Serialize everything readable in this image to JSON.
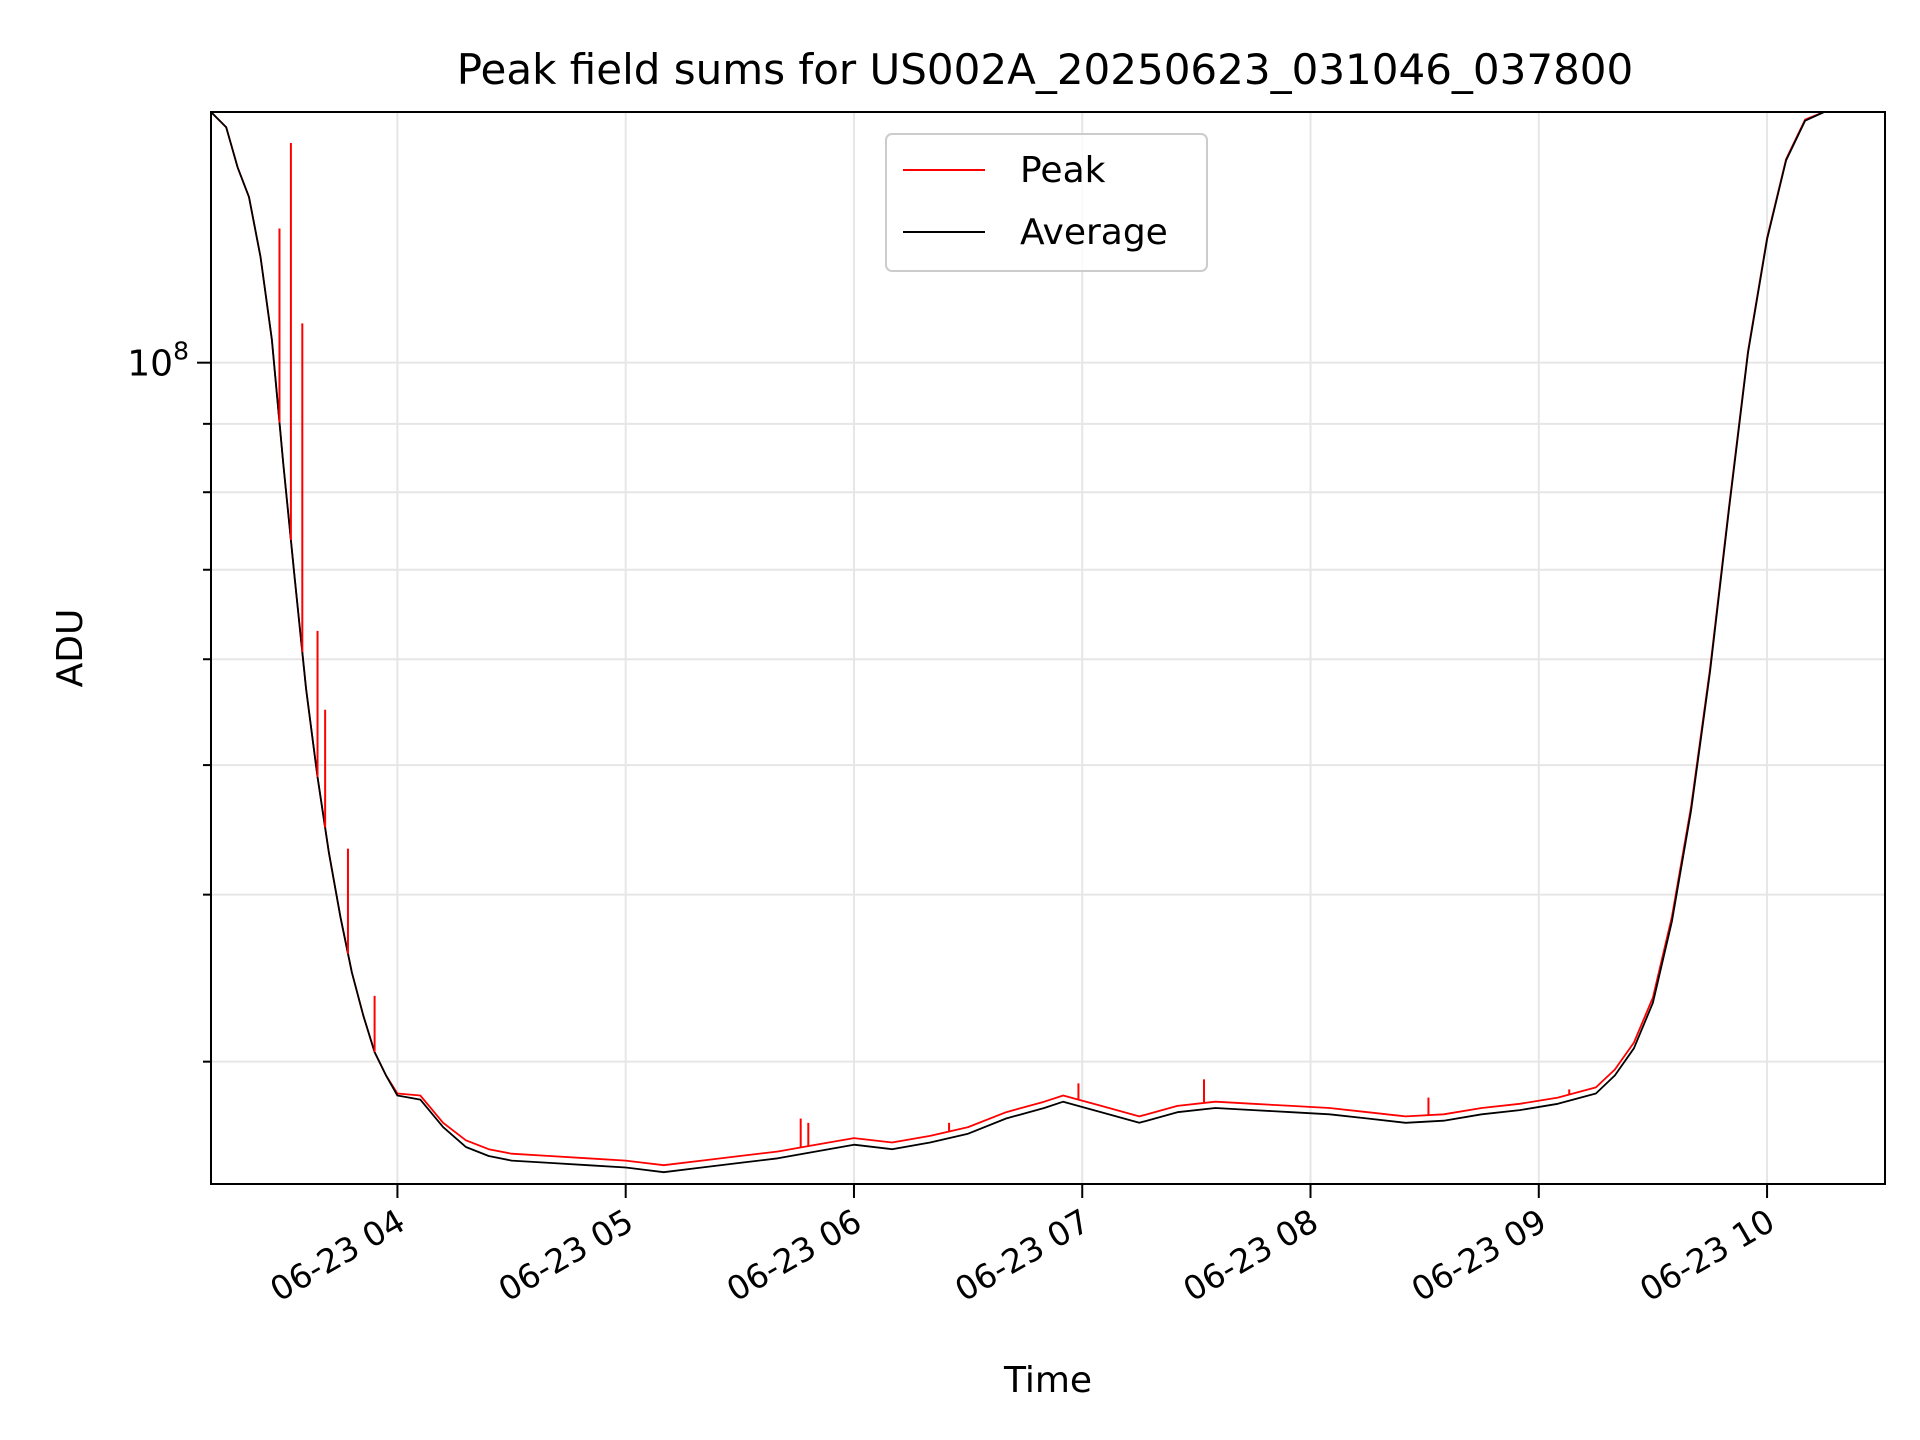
{
  "chart_data": {
    "type": "line",
    "title": "Peak field sums for US002A_20250623_031046_037800",
    "xlabel": "Time",
    "ylabel": "ADU",
    "x_axis": {
      "kind": "datetime",
      "range": [
        "2025-06-23 03:11",
        "2025-06-23 10:31"
      ],
      "ticks": [
        {
          "value": "2025-06-23 04:00",
          "label": "06-23 04"
        },
        {
          "value": "2025-06-23 05:00",
          "label": "06-23 05"
        },
        {
          "value": "2025-06-23 06:00",
          "label": "06-23 06"
        },
        {
          "value": "2025-06-23 07:00",
          "label": "06-23 07"
        },
        {
          "value": "2025-06-23 08:00",
          "label": "06-23 08"
        },
        {
          "value": "2025-06-23 09:00",
          "label": "06-23 09"
        },
        {
          "value": "2025-06-23 10:00",
          "label": "06-23 10"
        }
      ]
    },
    "y_axis": {
      "scale": "log",
      "range": [
        24300000.0,
        154000000.0
      ],
      "major_ticks": [
        {
          "value": 100000000,
          "label_base": "10",
          "label_exp": "8"
        }
      ],
      "minor_ticks": [
        30000000,
        40000000,
        50000000,
        60000000,
        70000000,
        80000000,
        90000000
      ]
    },
    "grid": true,
    "legend": {
      "position": "top-center"
    },
    "series": [
      {
        "name": "Peak",
        "color": "#ff0000",
        "points": [
          [
            "2025-06-23 03:11",
            154000000
          ],
          [
            "2025-06-23 03:15",
            150000000
          ],
          [
            "2025-06-23 03:18",
            140000000
          ],
          [
            "2025-06-23 03:21",
            133000000
          ],
          [
            "2025-06-23 03:24",
            120000000
          ],
          [
            "2025-06-23 03:27",
            104000000
          ],
          [
            "2025-06-23 03:30",
            84000000
          ],
          [
            "2025-06-23 03:33",
            69000000
          ],
          [
            "2025-06-23 03:36",
            57000000
          ],
          [
            "2025-06-23 03:39",
            49000000
          ],
          [
            "2025-06-23 03:42",
            43000000
          ],
          [
            "2025-06-23 03:45",
            38500000
          ],
          [
            "2025-06-23 03:48",
            35000000
          ],
          [
            "2025-06-23 03:51",
            32500000
          ],
          [
            "2025-06-23 03:54",
            30500000
          ],
          [
            "2025-06-23 03:57",
            29300000
          ],
          [
            "2025-06-23 04:00",
            28400000
          ],
          [
            "2025-06-23 04:06",
            28300000
          ],
          [
            "2025-06-23 04:12",
            27000000
          ],
          [
            "2025-06-23 04:18",
            26200000
          ],
          [
            "2025-06-23 04:24",
            25800000
          ],
          [
            "2025-06-23 04:30",
            25600000
          ],
          [
            "2025-06-23 04:40",
            25500000
          ],
          [
            "2025-06-23 04:50",
            25400000
          ],
          [
            "2025-06-23 05:00",
            25300000
          ],
          [
            "2025-06-23 05:10",
            25100000
          ],
          [
            "2025-06-23 05:20",
            25300000
          ],
          [
            "2025-06-23 05:30",
            25500000
          ],
          [
            "2025-06-23 05:40",
            25700000
          ],
          [
            "2025-06-23 05:50",
            26000000
          ],
          [
            "2025-06-23 06:00",
            26300000
          ],
          [
            "2025-06-23 06:10",
            26100000
          ],
          [
            "2025-06-23 06:20",
            26400000
          ],
          [
            "2025-06-23 06:30",
            26800000
          ],
          [
            "2025-06-23 06:40",
            27500000
          ],
          [
            "2025-06-23 06:50",
            28000000
          ],
          [
            "2025-06-23 06:55",
            28300000
          ],
          [
            "2025-06-23 07:05",
            27800000
          ],
          [
            "2025-06-23 07:15",
            27300000
          ],
          [
            "2025-06-23 07:25",
            27800000
          ],
          [
            "2025-06-23 07:35",
            28000000
          ],
          [
            "2025-06-23 07:45",
            27900000
          ],
          [
            "2025-06-23 07:55",
            27800000
          ],
          [
            "2025-06-23 08:05",
            27700000
          ],
          [
            "2025-06-23 08:15",
            27500000
          ],
          [
            "2025-06-23 08:25",
            27300000
          ],
          [
            "2025-06-23 08:35",
            27400000
          ],
          [
            "2025-06-23 08:45",
            27700000
          ],
          [
            "2025-06-23 08:55",
            27900000
          ],
          [
            "2025-06-23 09:05",
            28200000
          ],
          [
            "2025-06-23 09:15",
            28700000
          ],
          [
            "2025-06-23 09:20",
            29600000
          ],
          [
            "2025-06-23 09:25",
            31000000
          ],
          [
            "2025-06-23 09:30",
            33500000
          ],
          [
            "2025-06-23 09:35",
            38500000
          ],
          [
            "2025-06-23 09:40",
            46500000
          ],
          [
            "2025-06-23 09:45",
            59000000
          ],
          [
            "2025-06-23 09:50",
            78000000
          ],
          [
            "2025-06-23 09:55",
            102000000
          ],
          [
            "2025-06-23 10:00",
            124000000
          ],
          [
            "2025-06-23 10:05",
            142000000
          ],
          [
            "2025-06-23 10:10",
            152000000
          ],
          [
            "2025-06-23 10:15",
            154000000
          ],
          [
            "2025-06-23 10:31",
            154000000
          ]
        ],
        "spikes": [
          [
            "2025-06-23 03:29",
            126000000
          ],
          [
            "2025-06-23 03:32",
            146000000
          ],
          [
            "2025-06-23 03:35",
            107000000
          ],
          [
            "2025-06-23 03:39",
            63000000
          ],
          [
            "2025-06-23 03:41",
            55000000
          ],
          [
            "2025-06-23 03:47",
            43300000
          ],
          [
            "2025-06-23 03:54",
            33600000
          ],
          [
            "2025-06-23 05:46",
            27200000
          ],
          [
            "2025-06-23 05:48",
            27000000
          ],
          [
            "2025-06-23 06:25",
            27000000
          ],
          [
            "2025-06-23 06:59",
            28900000
          ],
          [
            "2025-06-23 07:32",
            29100000
          ],
          [
            "2025-06-23 08:31",
            28200000
          ],
          [
            "2025-06-23 09:08",
            28600000
          ]
        ]
      },
      {
        "name": "Average",
        "color": "#000000",
        "points": [
          [
            "2025-06-23 03:11",
            154000000
          ],
          [
            "2025-06-23 03:15",
            150000000
          ],
          [
            "2025-06-23 03:18",
            140000000
          ],
          [
            "2025-06-23 03:21",
            133000000
          ],
          [
            "2025-06-23 03:24",
            120000000
          ],
          [
            "2025-06-23 03:27",
            104000000
          ],
          [
            "2025-06-23 03:30",
            84000000
          ],
          [
            "2025-06-23 03:33",
            69000000
          ],
          [
            "2025-06-23 03:36",
            57000000
          ],
          [
            "2025-06-23 03:39",
            49000000
          ],
          [
            "2025-06-23 03:42",
            43000000
          ],
          [
            "2025-06-23 03:45",
            38500000
          ],
          [
            "2025-06-23 03:48",
            35000000
          ],
          [
            "2025-06-23 03:51",
            32500000
          ],
          [
            "2025-06-23 03:54",
            30500000
          ],
          [
            "2025-06-23 03:57",
            29300000
          ],
          [
            "2025-06-23 04:00",
            28300000
          ],
          [
            "2025-06-23 04:06",
            28100000
          ],
          [
            "2025-06-23 04:12",
            26800000
          ],
          [
            "2025-06-23 04:18",
            25900000
          ],
          [
            "2025-06-23 04:24",
            25500000
          ],
          [
            "2025-06-23 04:30",
            25300000
          ],
          [
            "2025-06-23 04:40",
            25200000
          ],
          [
            "2025-06-23 04:50",
            25100000
          ],
          [
            "2025-06-23 05:00",
            25000000
          ],
          [
            "2025-06-23 05:10",
            24800000
          ],
          [
            "2025-06-23 05:20",
            25000000
          ],
          [
            "2025-06-23 05:30",
            25200000
          ],
          [
            "2025-06-23 05:40",
            25400000
          ],
          [
            "2025-06-23 05:50",
            25700000
          ],
          [
            "2025-06-23 06:00",
            26000000
          ],
          [
            "2025-06-23 06:10",
            25800000
          ],
          [
            "2025-06-23 06:20",
            26100000
          ],
          [
            "2025-06-23 06:30",
            26500000
          ],
          [
            "2025-06-23 06:40",
            27200000
          ],
          [
            "2025-06-23 06:50",
            27700000
          ],
          [
            "2025-06-23 06:55",
            28000000
          ],
          [
            "2025-06-23 07:05",
            27500000
          ],
          [
            "2025-06-23 07:15",
            27000000
          ],
          [
            "2025-06-23 07:25",
            27500000
          ],
          [
            "2025-06-23 07:35",
            27700000
          ],
          [
            "2025-06-23 07:45",
            27600000
          ],
          [
            "2025-06-23 07:55",
            27500000
          ],
          [
            "2025-06-23 08:05",
            27400000
          ],
          [
            "2025-06-23 08:15",
            27200000
          ],
          [
            "2025-06-23 08:25",
            27000000
          ],
          [
            "2025-06-23 08:35",
            27100000
          ],
          [
            "2025-06-23 08:45",
            27400000
          ],
          [
            "2025-06-23 08:55",
            27600000
          ],
          [
            "2025-06-23 09:05",
            27900000
          ],
          [
            "2025-06-23 09:15",
            28400000
          ],
          [
            "2025-06-23 09:20",
            29300000
          ],
          [
            "2025-06-23 09:25",
            30700000
          ],
          [
            "2025-06-23 09:30",
            33200000
          ],
          [
            "2025-06-23 09:35",
            38200000
          ],
          [
            "2025-06-23 09:40",
            46200000
          ],
          [
            "2025-06-23 09:45",
            58700000
          ],
          [
            "2025-06-23 09:50",
            77700000
          ],
          [
            "2025-06-23 09:55",
            101700000
          ],
          [
            "2025-06-23 10:00",
            123700000
          ],
          [
            "2025-06-23 10:05",
            141700000
          ],
          [
            "2025-06-23 10:10",
            151700000
          ],
          [
            "2025-06-23 10:15",
            154000000
          ],
          [
            "2025-06-23 10:31",
            154000000
          ]
        ]
      }
    ]
  }
}
